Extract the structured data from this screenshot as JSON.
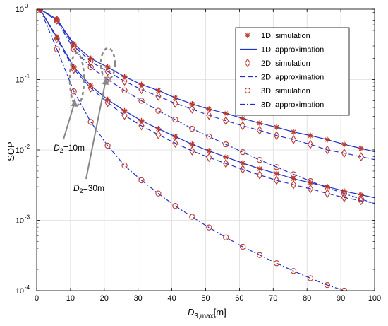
{
  "chart_data": {
    "type": "line",
    "xlabel": "D_{3,max}[m]",
    "xlabel_base": "D",
    "xlabel_sub": "3,max",
    "xlabel_unit": "[m]",
    "ylabel": "SOP",
    "xlim": [
      0,
      100
    ],
    "ylim": [
      0.0001,
      1
    ],
    "yscale": "log",
    "grid": true,
    "legend_position": "top-right",
    "x_ticks": [
      0,
      10,
      20,
      30,
      40,
      50,
      60,
      70,
      80,
      90,
      100
    ],
    "x_tick_labels": [
      "0",
      "10",
      "20",
      "30",
      "40",
      "50",
      "60",
      "70",
      "80",
      "90",
      "100"
    ],
    "y_ticks": [
      {
        "value": 1,
        "base": "10",
        "exp": "0"
      },
      {
        "value": 0.1,
        "base": "10",
        "exp": "-1"
      },
      {
        "value": 0.01,
        "base": "10",
        "exp": "-2"
      },
      {
        "value": 0.001,
        "base": "10",
        "exp": "-3"
      },
      {
        "value": 0.0001,
        "base": "10",
        "exp": "-4"
      }
    ],
    "legend": [
      "1D, simulation",
      "1D, approximation",
      "2D, simulation",
      "2D, approximation",
      "3D, simulation",
      "3D, approximation"
    ],
    "annotations": [
      {
        "base": "D",
        "sub": "2",
        "text": "=10m",
        "target_x": 10
      },
      {
        "base": "D",
        "sub": "2",
        "text": "=30m",
        "target_x": 20
      }
    ],
    "colors": {
      "simulation": "#c0392b",
      "approximation": "#1f2fc8"
    },
    "series": [
      {
        "dim": "1D",
        "group": "D2=30m",
        "x": [
          1,
          6,
          11,
          16,
          21,
          26,
          31,
          36,
          41,
          46,
          51,
          56,
          61,
          66,
          71,
          76,
          81,
          86,
          91,
          96
        ],
        "values": [
          1.0,
          0.72,
          0.32,
          0.2,
          0.15,
          0.11,
          0.085,
          0.07,
          0.055,
          0.045,
          0.038,
          0.033,
          0.028,
          0.024,
          0.021,
          0.018,
          0.016,
          0.014,
          0.012,
          0.0105
        ]
      },
      {
        "dim": "2D",
        "group": "D2=30m",
        "x": [
          1,
          6,
          11,
          16,
          21,
          26,
          31,
          36,
          41,
          46,
          51,
          56,
          61,
          66,
          71,
          76,
          81,
          86,
          91,
          96
        ],
        "values": [
          1.0,
          0.7,
          0.3,
          0.18,
          0.13,
          0.095,
          0.072,
          0.058,
          0.046,
          0.038,
          0.031,
          0.026,
          0.022,
          0.019,
          0.016,
          0.014,
          0.012,
          0.01,
          0.009,
          0.008
        ]
      },
      {
        "dim": "3D",
        "group": "D2=30m",
        "x": [
          1,
          6,
          11,
          16,
          21,
          26,
          31,
          36,
          41,
          46,
          51,
          56,
          61,
          66,
          71,
          76,
          81,
          86,
          91,
          96
        ],
        "values": [
          1.0,
          0.68,
          0.27,
          0.15,
          0.1,
          0.07,
          0.05,
          0.036,
          0.027,
          0.02,
          0.0155,
          0.012,
          0.0093,
          0.0072,
          0.0057,
          0.0045,
          0.0036,
          0.0029,
          0.0024,
          0.002
        ]
      },
      {
        "dim": "1D",
        "group": "D2=10m",
        "x": [
          1,
          6,
          11,
          16,
          21,
          26,
          31,
          36,
          41,
          46,
          51,
          56,
          61,
          66,
          71,
          76,
          81,
          86,
          91,
          96
        ],
        "values": [
          1.0,
          0.4,
          0.15,
          0.082,
          0.052,
          0.036,
          0.026,
          0.02,
          0.0155,
          0.012,
          0.0097,
          0.0079,
          0.0065,
          0.0054,
          0.0046,
          0.0039,
          0.0034,
          0.003,
          0.0026,
          0.0023
        ]
      },
      {
        "dim": "2D",
        "group": "D2=10m",
        "x": [
          1,
          6,
          11,
          16,
          21,
          26,
          31,
          36,
          41,
          46,
          51,
          56,
          61,
          66,
          71,
          76,
          81,
          86,
          91,
          96
        ],
        "values": [
          1.0,
          0.38,
          0.14,
          0.076,
          0.047,
          0.031,
          0.022,
          0.0165,
          0.0125,
          0.0097,
          0.0078,
          0.0064,
          0.0053,
          0.0044,
          0.0037,
          0.0032,
          0.0028,
          0.0024,
          0.0021,
          0.0019
        ]
      },
      {
        "dim": "3D",
        "group": "D2=10m",
        "x": [
          1,
          6,
          11,
          16,
          21,
          26,
          31,
          36,
          41,
          46,
          51,
          56,
          61,
          66,
          71,
          76,
          81,
          86,
          91,
          96
        ],
        "values": [
          1.0,
          0.27,
          0.068,
          0.025,
          0.0115,
          0.006,
          0.0037,
          0.0024,
          0.0016,
          0.00112,
          0.00079,
          0.00057,
          0.00042,
          0.00032,
          0.000245,
          0.00019,
          0.00015,
          0.00012,
          0.0001,
          8.2e-05
        ]
      }
    ]
  }
}
